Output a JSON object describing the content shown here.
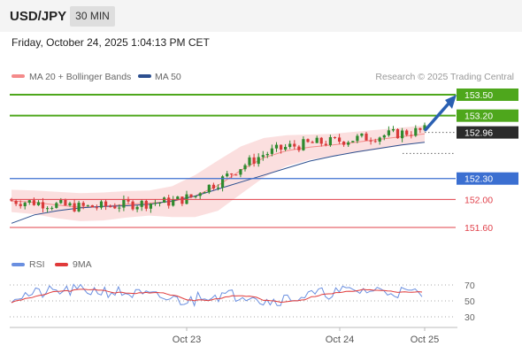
{
  "header": {
    "symbol": "USD/JPY",
    "timeframe": "30 MIN",
    "datetime": "Friday, October 24, 2025 1:04:13 PM CET"
  },
  "legend": {
    "ma20": "MA 20 + Bollinger Bands",
    "ma50": "MA 50",
    "credit": "Research © 2025 Trading Central",
    "rsi": "RSI",
    "ma9": "9MA"
  },
  "colors": {
    "resistance": "#4ea71c",
    "support": "#3b6fd1",
    "target_red": "#e0404a",
    "ma20": "#f48a8a",
    "ma50": "#2c4f8f",
    "bollinger_fill": "#fad4d4",
    "candle_up": "#2e8a2e",
    "candle_down": "#d93a3a",
    "arrow": "#2a60b2",
    "rsi": "#6a8fe0",
    "rsi_ma": "#e03a3a",
    "current_price_bg": "#2b2b2b"
  },
  "chart_data": {
    "type": "candlestick",
    "instrument": "USD/JPY",
    "timeframe": "30 MIN",
    "x_ticks": [
      "Oct 23",
      "Oct 24",
      "Oct 25"
    ],
    "price_levels": [
      {
        "label": "153.50",
        "value": 153.5,
        "kind": "resistance"
      },
      {
        "label": "153.20",
        "value": 153.2,
        "kind": "resistance"
      },
      {
        "label": "152.96",
        "value": 152.96,
        "kind": "current"
      },
      {
        "label": "152.30",
        "value": 152.3,
        "kind": "pivot"
      },
      {
        "label": "152.00",
        "value": 152.0,
        "kind": "support"
      },
      {
        "label": "151.60",
        "value": 151.6,
        "kind": "support"
      }
    ],
    "forecast_arrow": {
      "from": 152.96,
      "to": 153.5
    },
    "ma20_sample": [
      151.98,
      151.96,
      151.92,
      151.89,
      151.9,
      151.93,
      151.95,
      151.97,
      152.05,
      152.2,
      152.42,
      152.6,
      152.7,
      152.75,
      152.78,
      152.82,
      152.86,
      152.9,
      152.94
    ],
    "ma50_sample": [
      151.66,
      151.78,
      151.84,
      151.88,
      151.9,
      151.91,
      151.93,
      151.98,
      152.05,
      152.15,
      152.25,
      152.35,
      152.45,
      152.55,
      152.62,
      152.68,
      152.73,
      152.78,
      152.82
    ],
    "rsi": {
      "levels": [
        70,
        50,
        30
      ],
      "labels": [
        "70",
        "50",
        "30"
      ]
    }
  }
}
